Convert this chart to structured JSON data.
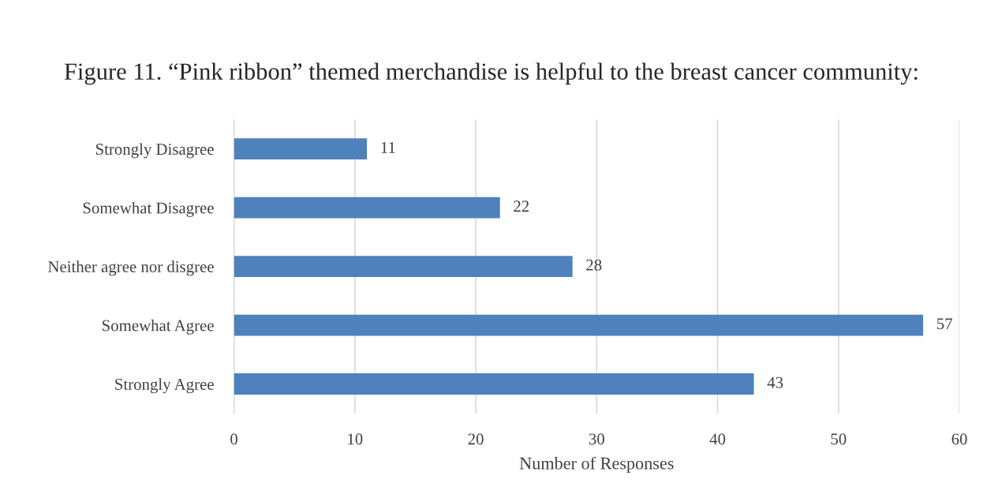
{
  "chart_data": {
    "type": "bar",
    "orientation": "horizontal",
    "title": "Figure 11. “Pink ribbon” themed merchandise is helpful to the breast cancer community:",
    "xlabel": "Number of Responses",
    "categories": [
      "Strongly Disagree",
      "Somewhat Disagree",
      "Neither agree nor disgree",
      "Somewhat Agree",
      "Strongly Agree"
    ],
    "values": [
      11,
      22,
      28,
      57,
      43
    ],
    "color": "#4f81bd",
    "xlim": [
      0,
      60
    ],
    "xticks": [
      0,
      10,
      20,
      30,
      40,
      50,
      60
    ],
    "grid": "x",
    "data_labels": true
  }
}
